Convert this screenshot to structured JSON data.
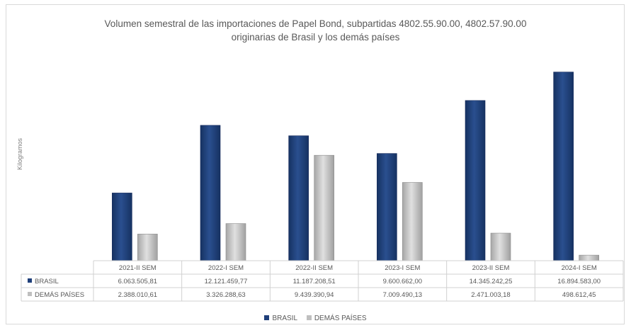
{
  "chart_data": {
    "type": "bar",
    "title_line1": "Volumen semestral de las importaciones de Papel Bond, subpartidas 4802.55.90.00, 4802.57.90.00",
    "title_line2": "originarias de Brasil y los demás países",
    "ylabel": "Kilogramos",
    "xlabel": "",
    "categories": [
      "2021-II SEM",
      "2022-I SEM",
      "2022-II SEM",
      "2023-I SEM",
      "2023-II SEM",
      "2024-I SEM"
    ],
    "series": [
      {
        "name": "BRASIL",
        "color": "#1f3f7a",
        "values": [
          6063505.81,
          12121459.77,
          11187208.51,
          9600662.0,
          14345242.25,
          16894583.0
        ],
        "labels": [
          "6.063.505,81",
          "12.121.459,77",
          "11.187.208,51",
          "9.600.662,00",
          "14.345.242,25",
          "16.894.583,00"
        ]
      },
      {
        "name": "DEMÁS PAÍSES",
        "color": "#bfbfbf",
        "values": [
          2388010.61,
          3326288.63,
          9439390.94,
          7009490.13,
          2471003.18,
          498612.45
        ],
        "labels": [
          "2.388.010,61",
          "3.326.288,63",
          "9.439.390,94",
          "7.009.490,13",
          "2.471.003,18",
          "498.612,45"
        ]
      }
    ],
    "ylim": [
      0,
      17000000
    ],
    "grid": false,
    "legend_position": "bottom",
    "data_table": true
  }
}
